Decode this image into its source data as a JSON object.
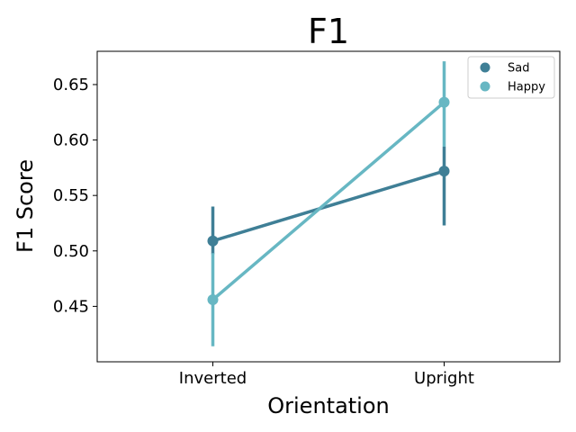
{
  "chart_data": {
    "type": "line",
    "title": "F1",
    "xlabel": "Orientation",
    "ylabel": "F1 Score",
    "categories": [
      "Inverted",
      "Upright"
    ],
    "ylim": [
      0.4,
      0.68
    ],
    "yticks": [
      0.45,
      0.5,
      0.55,
      0.6,
      0.65
    ],
    "ytick_labels": [
      "0.45",
      "0.50",
      "0.55",
      "0.60",
      "0.65"
    ],
    "grid": false,
    "legend_position": "top-right",
    "series": [
      {
        "name": "Sad",
        "color": "#3f7f96",
        "values": [
          0.509,
          0.572
        ],
        "err_low": [
          0.497,
          0.523
        ],
        "err_high": [
          0.54,
          0.594
        ]
      },
      {
        "name": "Happy",
        "color": "#67b7c3",
        "values": [
          0.456,
          0.634
        ],
        "err_low": [
          0.414,
          0.594
        ],
        "err_high": [
          0.498,
          0.671
        ]
      }
    ]
  }
}
